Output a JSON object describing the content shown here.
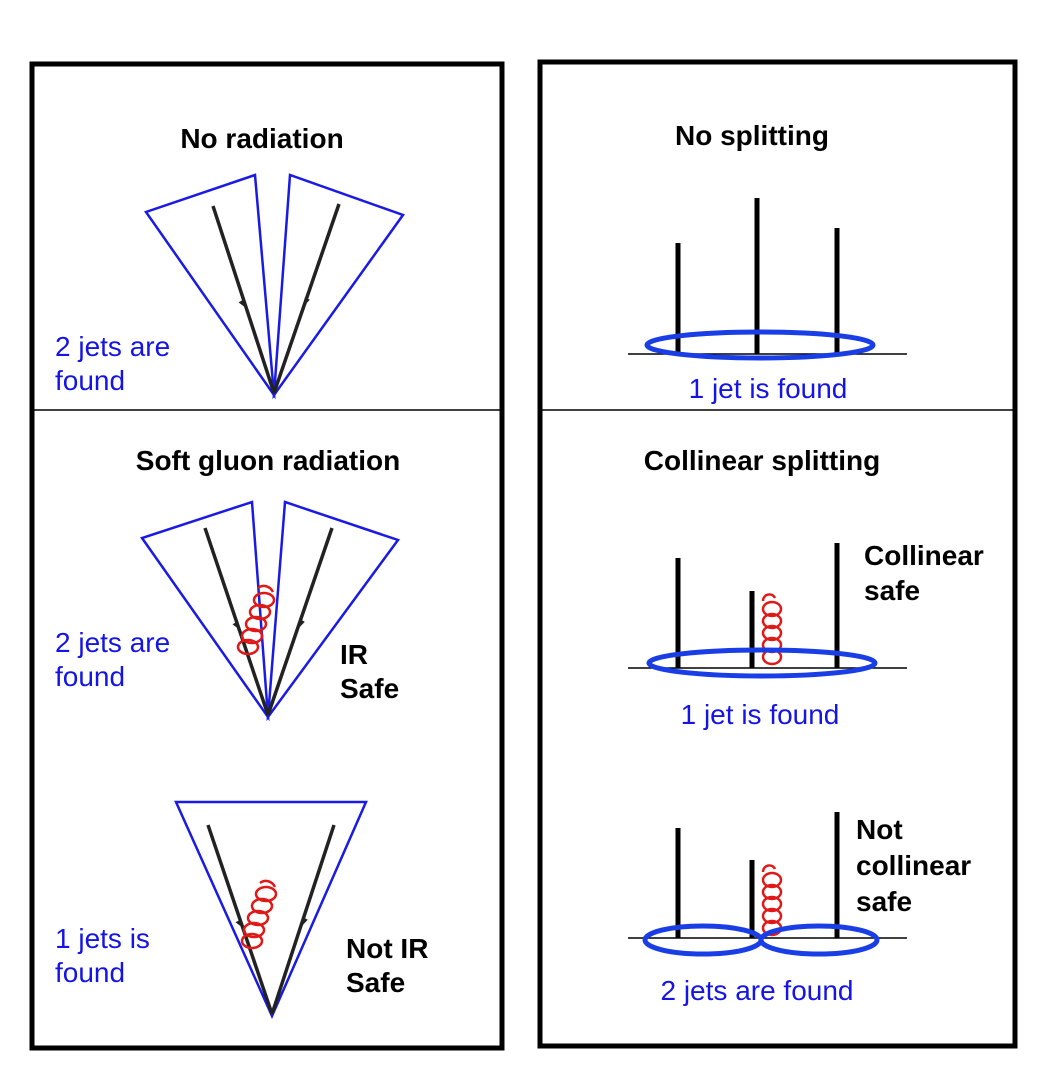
{
  "colors": {
    "frame": "#000000",
    "cone": "#1a1ae6",
    "ring": "#1a3ee6",
    "label": "#1414e6",
    "gluon": "#e01818",
    "line": "#222222"
  },
  "left_panel": {
    "no_radiation": {
      "title": "No radiation",
      "result_line1": "2 jets are",
      "result_line2": "found"
    },
    "soft_gluon": {
      "title": "Soft gluon radiation",
      "result_line1": "2 jets are",
      "result_line2": "found",
      "verdict_line1": "IR",
      "verdict_line2": "Safe"
    },
    "not_ir_safe": {
      "result_line1": "1 jets is",
      "result_line2": "found",
      "verdict_line1": "Not IR",
      "verdict_line2": "Safe"
    }
  },
  "right_panel": {
    "no_splitting": {
      "title": "No splitting",
      "result": "1 jet is found"
    },
    "collinear_safe": {
      "title": "Collinear splitting",
      "verdict_line1": "Collinear",
      "verdict_line2": "safe",
      "result": "1 jet is found"
    },
    "not_collinear_safe": {
      "verdict_line1": "Not",
      "verdict_line2": "collinear",
      "verdict_line3": "safe",
      "result": "2 jets are found"
    }
  }
}
